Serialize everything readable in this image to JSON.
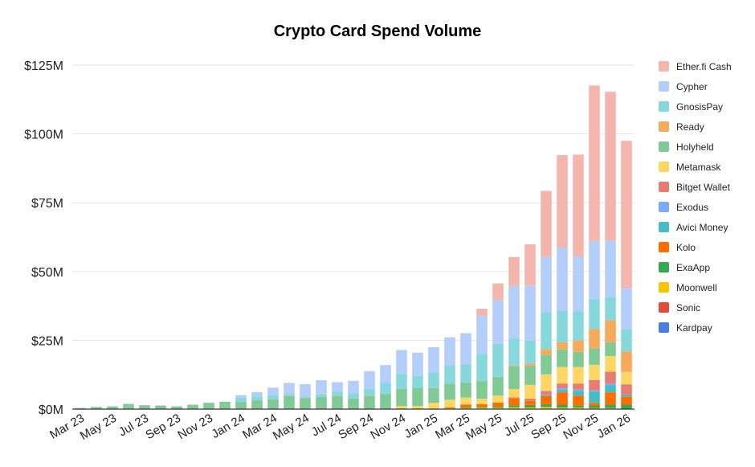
{
  "chart_data": {
    "type": "bar",
    "stacked": true,
    "title": "Crypto Card Spend Volume",
    "xlabel": "",
    "ylabel": "",
    "ylim": [
      0,
      125
    ],
    "y_unit": "$M",
    "y_ticks": [
      "$0M",
      "$25M",
      "$50M",
      "$75M",
      "$100M",
      "$125M"
    ],
    "y_tick_values": [
      0,
      25,
      50,
      75,
      100,
      125
    ],
    "x_tick_labels": [
      "Mar 23",
      "May 23",
      "Jul 23",
      "Sep 23",
      "Nov 23",
      "Jan 24",
      "Mar 24",
      "May 24",
      "Jul 24",
      "Sep 24",
      "Nov 24",
      "Jan 25",
      "Mar 25",
      "May 25",
      "Jul 25",
      "Sep 25",
      "Nov 25",
      "Jan 26"
    ],
    "categories": [
      "Mar 23",
      "Apr 23",
      "May 23",
      "Jun 23",
      "Jul 23",
      "Aug 23",
      "Sep 23",
      "Oct 23",
      "Nov 23",
      "Dec 23",
      "Jan 24",
      "Feb 24",
      "Mar 24",
      "Apr 24",
      "May 24",
      "Jun 24",
      "Jul 24",
      "Aug 24",
      "Sep 24",
      "Oct 24",
      "Nov 24",
      "Dec 24",
      "Jan 25",
      "Feb 25",
      "Mar 25",
      "Apr 25",
      "May 25",
      "Jun 25",
      "Jul 25",
      "Aug 25",
      "Sep 25",
      "Oct 25",
      "Nov 25",
      "Dec 25",
      "Jan 26"
    ],
    "grid": true,
    "legend_position": "right",
    "series": [
      {
        "name": "Kardpay",
        "color": "#4a7fe0",
        "values": [
          0,
          0,
          0,
          0,
          0,
          0,
          0,
          0,
          0,
          0,
          0,
          0,
          0,
          0,
          0,
          0,
          0,
          0,
          0,
          0,
          0,
          0,
          0,
          0,
          0,
          0,
          0,
          0,
          0,
          0,
          0,
          0,
          0,
          0,
          0
        ]
      },
      {
        "name": "Sonic",
        "color": "#e44b3a",
        "values": [
          0,
          0,
          0,
          0,
          0,
          0,
          0,
          0,
          0,
          0,
          0,
          0,
          0,
          0,
          0,
          0,
          0,
          0,
          0,
          0,
          0,
          0,
          0,
          0,
          0,
          0,
          0,
          0,
          0,
          0,
          0,
          0,
          0,
          0,
          0
        ]
      },
      {
        "name": "Moonwell",
        "color": "#f6c700",
        "values": [
          0,
          0,
          0,
          0,
          0,
          0,
          0,
          0,
          0,
          0,
          0,
          0,
          0,
          0,
          0,
          0,
          0,
          0,
          0,
          0,
          0.3,
          0.3,
          0.3,
          0.3,
          0.4,
          0.5,
          0.5,
          0.7,
          0.6,
          0.8,
          0.6,
          0.6,
          0.4,
          0.4,
          0
        ]
      },
      {
        "name": "ExaApp",
        "color": "#34a853",
        "values": [
          0,
          0,
          0,
          0,
          0,
          0,
          0,
          0,
          0,
          0,
          0,
          0,
          0,
          0,
          0,
          0,
          0,
          0,
          0,
          0,
          0,
          0,
          0,
          0,
          0.3,
          0.3,
          0.4,
          0.7,
          0.9,
          1.0,
          1.0,
          0.8,
          0.9,
          1.2,
          1.6
        ]
      },
      {
        "name": "Kolo",
        "color": "#ff6d00",
        "values": [
          0,
          0,
          0,
          0,
          0,
          0,
          0,
          0,
          0,
          0,
          0,
          0,
          0,
          0,
          0,
          0,
          0,
          0,
          0,
          0,
          0,
          0,
          0,
          0.3,
          1.0,
          1.0,
          1.5,
          2.6,
          1.5,
          3.0,
          4.5,
          3.5,
          1.0,
          4.5,
          3.0
        ]
      },
      {
        "name": "Avici Money",
        "color": "#46bdc6",
        "values": [
          0,
          0,
          0,
          0,
          0,
          0,
          0,
          0,
          0,
          0,
          0,
          0,
          0,
          0,
          0,
          0,
          0,
          0,
          0,
          0,
          0,
          0,
          0,
          0,
          0,
          0,
          0,
          0,
          0,
          0.3,
          1.0,
          1.7,
          4.0,
          2.5,
          0.7
        ]
      },
      {
        "name": "Exodus",
        "color": "#7baaf7",
        "values": [
          0,
          0,
          0,
          0,
          0,
          0,
          0,
          0,
          0,
          0,
          0,
          0,
          0,
          0,
          0,
          0,
          0,
          0,
          0,
          0,
          0,
          0,
          0,
          0,
          0,
          0,
          0,
          0,
          0,
          0.2,
          0.5,
          0.5,
          0.5,
          0.7,
          0
        ]
      },
      {
        "name": "Bitget Wallet",
        "color": "#e67c73",
        "values": [
          0,
          0,
          0,
          0,
          0,
          0,
          0,
          0,
          0,
          0,
          0,
          0,
          0,
          0,
          0,
          0,
          0,
          0,
          0,
          0,
          0,
          0,
          0,
          0,
          0,
          0,
          0,
          0.3,
          0.8,
          1.3,
          1.7,
          2.2,
          3.8,
          4.3,
          3.7
        ]
      },
      {
        "name": "Metamask",
        "color": "#fdd663",
        "values": [
          0,
          0,
          0,
          0,
          0,
          0,
          0,
          0,
          0,
          0,
          0,
          0,
          0,
          0,
          0,
          0,
          0,
          0,
          0,
          0,
          0.8,
          0.8,
          2.0,
          2.8,
          2.5,
          2.0,
          2.5,
          3.0,
          5.0,
          6.0,
          6.0,
          6.0,
          5.5,
          5.7,
          4.5
        ]
      },
      {
        "name": "Holyheld",
        "color": "#81c995",
        "values": [
          0.4,
          0.8,
          1.0,
          1.9,
          1.4,
          1.3,
          1.0,
          1.6,
          2.3,
          2.7,
          2.6,
          3.2,
          3.6,
          4.7,
          4.0,
          4.4,
          4.9,
          3.9,
          4.9,
          5.5,
          6.3,
          6.5,
          5.4,
          5.8,
          5.5,
          6.3,
          6.8,
          8.2,
          7.0,
          7.2,
          6.5,
          5.5,
          6.0,
          5.0,
          0
        ]
      },
      {
        "name": "Ready",
        "color": "#f6aa5c",
        "values": [
          0,
          0,
          0,
          0,
          0,
          0,
          0,
          0,
          0,
          0,
          0,
          0,
          0,
          0,
          0,
          0,
          0,
          0,
          0,
          0,
          0,
          0,
          0,
          0,
          0,
          0,
          0,
          0.3,
          0.8,
          2.0,
          2.5,
          4.2,
          7.0,
          8.0,
          7.5
        ]
      },
      {
        "name": "GnosisPay",
        "color": "#87d8dc",
        "values": [
          0,
          0,
          0,
          0,
          0,
          0,
          0,
          0,
          0,
          0,
          1.5,
          1.4,
          1.5,
          0.8,
          0.6,
          1.1,
          1.4,
          1.8,
          2.5,
          4.0,
          5.4,
          4.6,
          5.7,
          6.7,
          6.5,
          10.0,
          12.0,
          10.0,
          8.3,
          13.5,
          11.5,
          10.5,
          11.0,
          8.5,
          8.0
        ]
      },
      {
        "name": "Cypher",
        "color": "#b3cefb",
        "values": [
          0,
          0,
          0,
          0,
          0,
          0,
          0,
          0,
          0,
          0,
          1.0,
          1.6,
          2.7,
          4.0,
          4.5,
          5.0,
          3.5,
          4.6,
          6.4,
          6.5,
          8.7,
          8.3,
          9.1,
          10.2,
          11.4,
          13.9,
          16.0,
          19.0,
          20.0,
          20.0,
          23.0,
          20.0,
          21.0,
          20.5,
          15.0
        ]
      },
      {
        "name": "Ether.fi Cash",
        "color": "#f4b5ac",
        "values": [
          0,
          0,
          0,
          0,
          0,
          0,
          0,
          0,
          0,
          0,
          0,
          0,
          0,
          0,
          0,
          0,
          0,
          0,
          0,
          0,
          0,
          0,
          0,
          0,
          0,
          2.5,
          6.0,
          10.5,
          15.0,
          24.0,
          33.5,
          37.0,
          56.5,
          54.0,
          53.5
        ]
      }
    ]
  }
}
